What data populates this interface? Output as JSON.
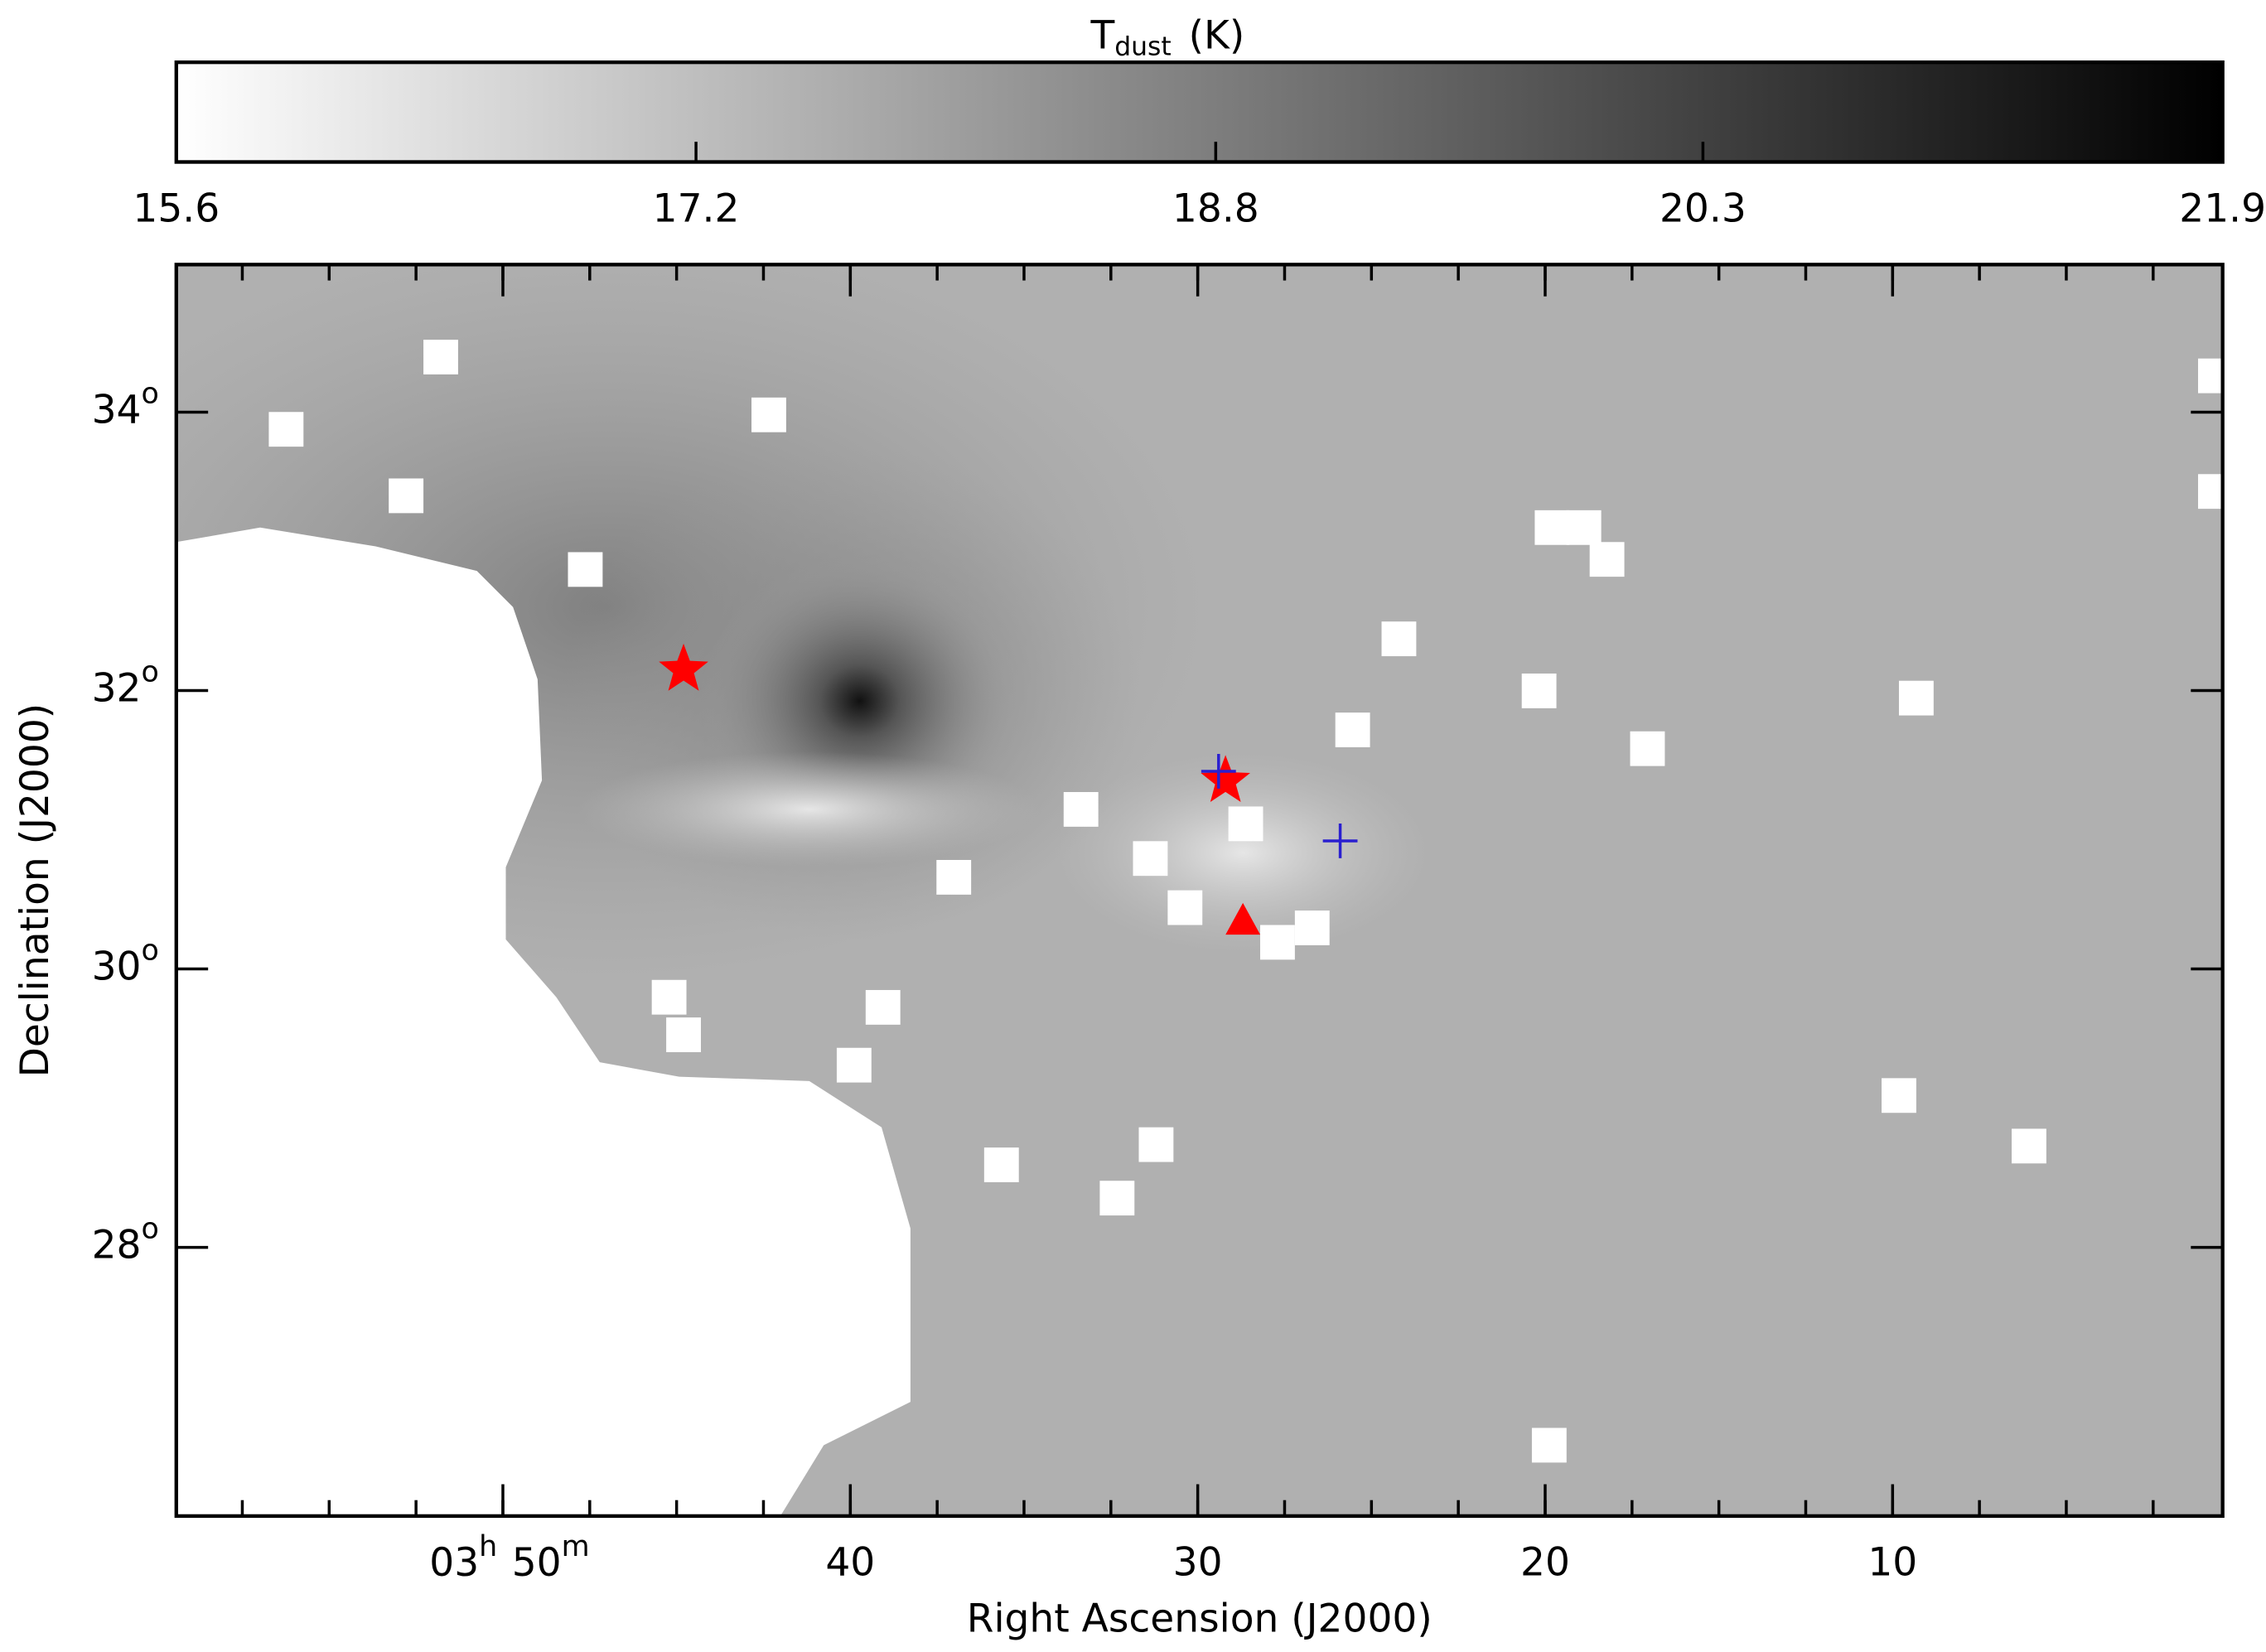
{
  "chart_data": {
    "type": "image",
    "colorbar_label": {
      "symbol": "T",
      "subscript": "dust",
      "unit": "(K)"
    },
    "clim": [
      15.6,
      21.9
    ],
    "colorbar_ticks": [
      15.6,
      17.2,
      18.8,
      20.3,
      21.9
    ],
    "colormap": [
      "#ffffff",
      "#000000"
    ],
    "xlabel": "Right Ascension (J2000)",
    "ylabel": "Declination (J2000)",
    "xlim": [
      59.4,
      0.5
    ],
    "ylim": [
      26.07,
      35.06
    ],
    "xticks": [
      {
        "value": 50,
        "hours": "03",
        "hours_unit": "h",
        "minutes": "50",
        "minutes_unit": "m"
      },
      40,
      30,
      20,
      10
    ],
    "xminor_step": 2.5,
    "yticks": [
      {
        "value": 34,
        "label": "34",
        "sup": "o"
      },
      {
        "value": 32,
        "label": "32",
        "sup": "o"
      },
      {
        "value": 30,
        "label": "30",
        "sup": "o"
      },
      {
        "value": 28,
        "label": "28",
        "sup": "o"
      }
    ],
    "markers": [
      {
        "shape": "star",
        "color": "#ff0000",
        "x": [
          44.8,
          29.2
        ],
        "y": [
          32.15,
          31.35
        ]
      },
      {
        "shape": "triangle",
        "color": "#ff0000",
        "x": [
          28.7
        ],
        "y": [
          30.35
        ]
      },
      {
        "shape": "plus",
        "color": "#2a1fd0",
        "x": [
          29.4,
          25.9
        ],
        "y": [
          31.42,
          30.92
        ]
      }
    ]
  }
}
